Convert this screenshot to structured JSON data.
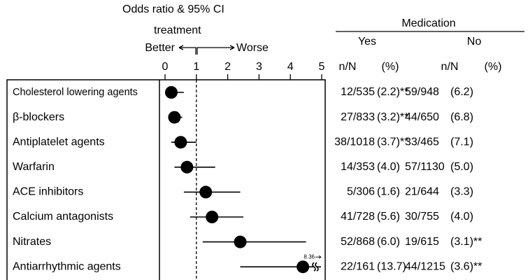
{
  "chart_data": {
    "type": "forest",
    "title": "Odds ratio & 95% CI",
    "subtitle": "treatment",
    "better_label": "Better",
    "worse_label": "Worse",
    "categories": [
      "Cholesterol lowering agents",
      "β-blockers",
      "Antiplatelet agents",
      "Warfarin",
      "ACE inhibitors",
      "Calcium antagonists",
      "Nitrates",
      "Antiarrhythmic agents"
    ],
    "values": [
      0.2,
      0.3,
      0.5,
      0.7,
      1.3,
      1.5,
      2.4,
      4.4
    ],
    "ci_low": [
      0.05,
      0.15,
      0.2,
      0.3,
      0.6,
      0.8,
      1.2,
      2.4
    ],
    "ci_high": [
      0.6,
      0.55,
      1.0,
      1.6,
      2.4,
      2.5,
      4.5,
      8.36
    ],
    "xlim": [
      0,
      5
    ],
    "xticks": [
      0,
      1,
      2,
      3,
      4,
      5
    ],
    "reference_line": 1,
    "color": "#000000"
  },
  "table": {
    "group_title": "Medication",
    "groups": [
      "Yes",
      "No"
    ],
    "columns": [
      "n/N",
      "(%)",
      "n/N",
      "(%)"
    ],
    "rows": [
      [
        "12/535",
        "(2.2)**",
        "59/948",
        "(6.2)"
      ],
      [
        "27/833",
        "(3.2)**",
        "44/650",
        "(6.8)"
      ],
      [
        "38/1018",
        "(3.7)**",
        "33/465",
        "(7.1)"
      ],
      [
        "14/353",
        "(4.0)",
        "57/1130",
        "(5.0)"
      ],
      [
        "5/306",
        "(1.6)",
        "21/644",
        "(3.3)"
      ],
      [
        "41/728",
        "(5.6)",
        "30/755",
        "(4.0)"
      ],
      [
        "52/868",
        "(6.0)",
        "19/615",
        "(3.1)**"
      ],
      [
        "22/161",
        "(13.7)",
        "44/1215",
        "(3.6)**"
      ]
    ]
  }
}
